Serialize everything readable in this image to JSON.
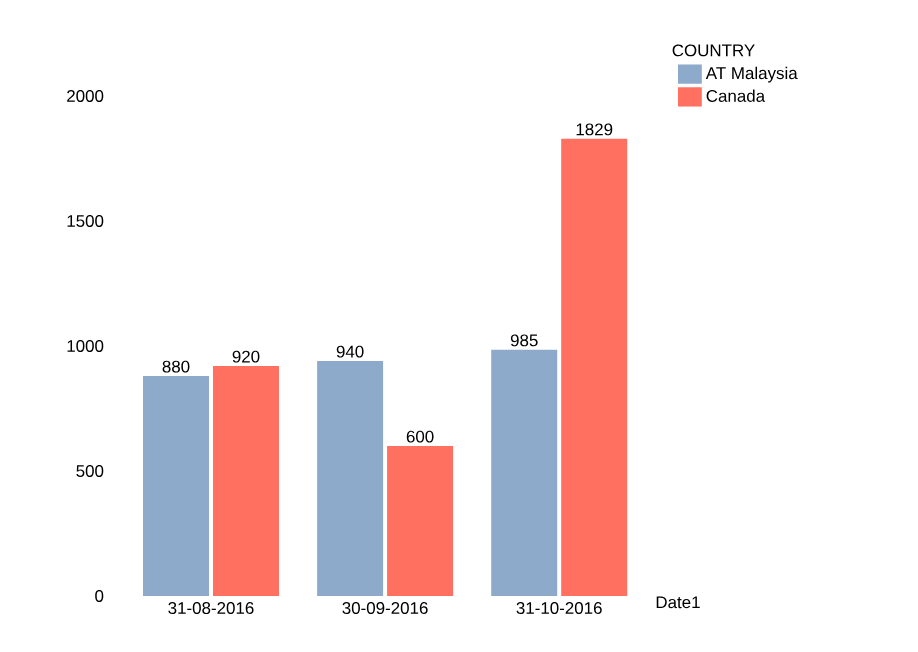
{
  "chart_data": {
    "type": "bar",
    "xlabel": "Date1",
    "legend_title": "COUNTRY",
    "legend": "top right",
    "data_labels": true,
    "grid": false,
    "categories": [
      "31-08-2016",
      "30-09-2016",
      "31-10-2016"
    ],
    "ylim": [
      0,
      2000
    ],
    "yticks": [
      0,
      500,
      1000,
      1500,
      2000
    ],
    "series": [
      {
        "name": "AT Malaysia",
        "color": "#8eaacb",
        "values": [
          880,
          940,
          985
        ]
      },
      {
        "name": "Canada",
        "color": "#ff7060",
        "values": [
          920,
          600,
          1829
        ]
      }
    ]
  }
}
